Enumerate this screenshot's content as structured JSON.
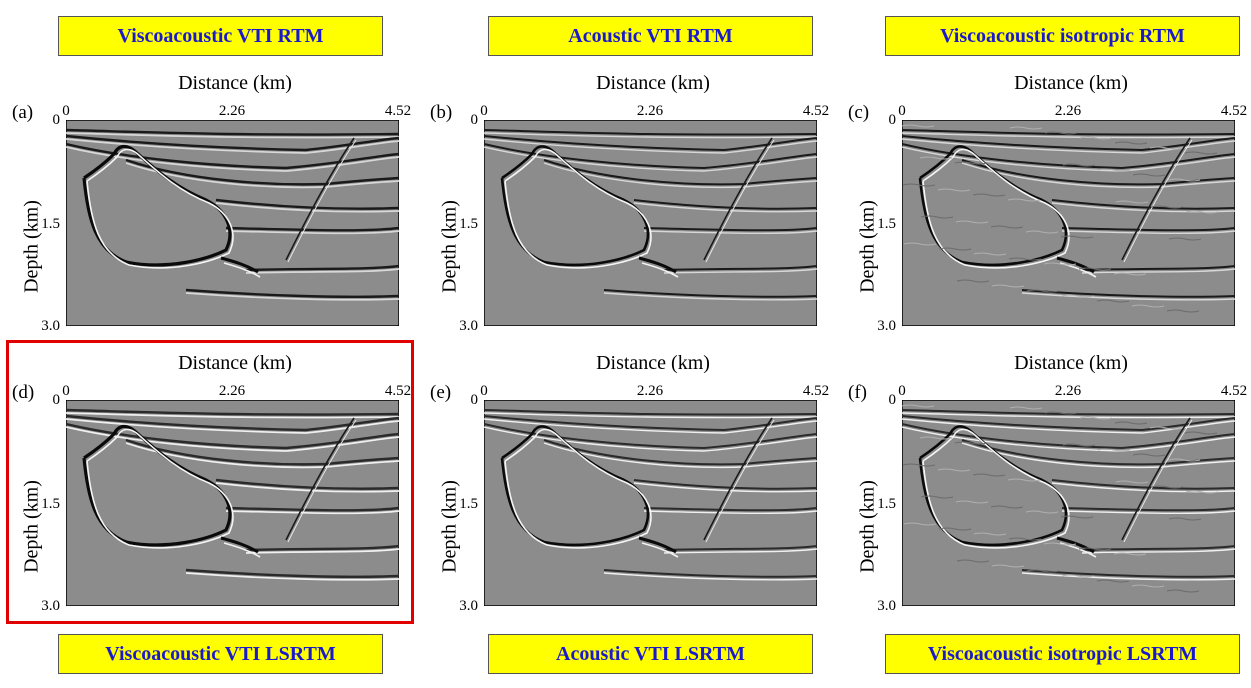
{
  "banners": {
    "top": [
      "Viscoacoustic VTI RTM",
      "Acoustic VTI RTM",
      "Viscoacoustic isotropic RTM"
    ],
    "bottom": [
      "Viscoacoustic VTI LSRTM",
      "Acoustic VTI LSRTM",
      "Viscoacoustic isotropic LSRTM"
    ]
  },
  "axes": {
    "x_title": "Distance (km)",
    "y_title": "Depth (km)",
    "x_ticks": [
      "0",
      "2.26",
      "4.52"
    ],
    "y_ticks": [
      "0",
      "1.5",
      "3.0"
    ]
  },
  "panels": [
    {
      "letter": "(a)",
      "style": "viscoacoustic-vti-rtm"
    },
    {
      "letter": "(b)",
      "style": "acoustic-vti-rtm"
    },
    {
      "letter": "(c)",
      "style": "viscoacoustic-isotropic-rtm"
    },
    {
      "letter": "(d)",
      "style": "viscoacoustic-vti-lsrtm",
      "highlighted": true
    },
    {
      "letter": "(e)",
      "style": "acoustic-vti-lsrtm"
    },
    {
      "letter": "(f)",
      "style": "viscoacoustic-isotropic-lsrtm"
    }
  ],
  "colors": {
    "banner_bg": "#ffff00",
    "banner_text": "#1a1acc",
    "highlight_border": "#e00000",
    "image_gray": "#8c8c8c"
  }
}
